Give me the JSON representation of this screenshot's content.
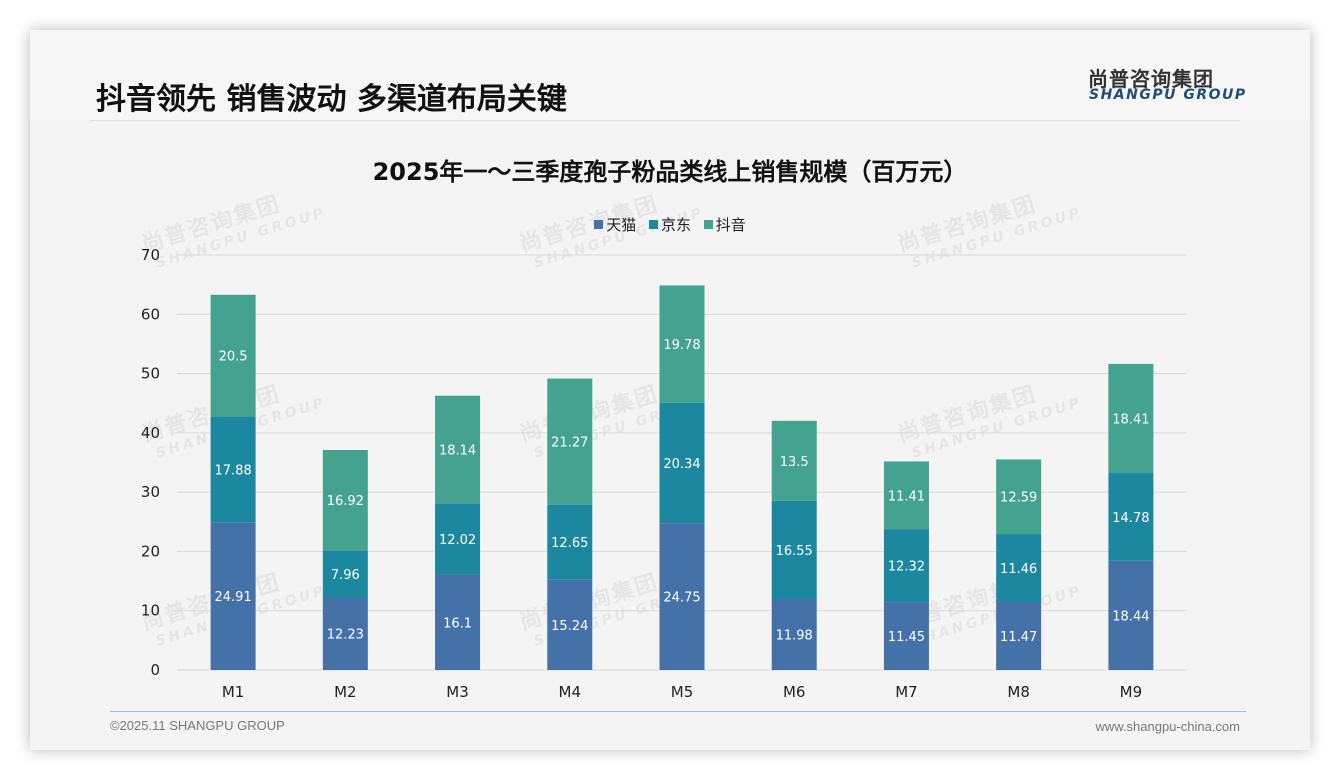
{
  "header": {
    "headline": "抖音领先 销售波动 多渠道布局关键",
    "logo_cn": "尚普咨询集团",
    "logo_en": "SHANGPU GROUP"
  },
  "watermark": {
    "cn": "尚普咨询集团",
    "en": "SHANGPU GROUP"
  },
  "footer": {
    "copyright": "©2025.11 SHANGPU GROUP",
    "website": "www.shangpu-china.com"
  },
  "chart_data": {
    "type": "bar",
    "stacked": true,
    "title": "2025年一～三季度孢子粉品类线上销售规模（百万元）",
    "xlabel": "",
    "ylabel": "",
    "categories": [
      "M1",
      "M2",
      "M3",
      "M4",
      "M5",
      "M6",
      "M7",
      "M8",
      "M9"
    ],
    "ylim": [
      0,
      70
    ],
    "yticks": [
      0,
      10,
      20,
      30,
      40,
      50,
      60,
      70
    ],
    "grid": true,
    "legend_position": "top-center",
    "series": [
      {
        "name": "天猫",
        "color": "#4472a8",
        "values": [
          24.91,
          12.23,
          16.1,
          15.24,
          24.75,
          11.98,
          11.45,
          11.47,
          18.44
        ]
      },
      {
        "name": "京东",
        "color": "#1b88a0",
        "values": [
          17.88,
          7.96,
          12.02,
          12.65,
          20.34,
          16.55,
          12.32,
          11.46,
          14.78
        ]
      },
      {
        "name": "抖音",
        "color": "#43a38e",
        "values": [
          20.5,
          16.92,
          18.14,
          21.27,
          19.78,
          13.5,
          11.41,
          12.59,
          18.41
        ]
      }
    ]
  }
}
